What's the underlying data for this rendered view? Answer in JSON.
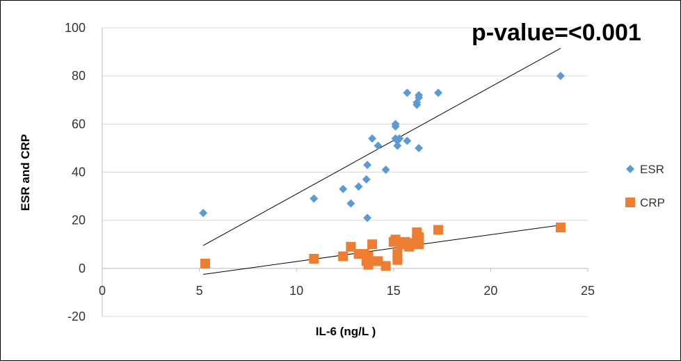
{
  "chart_data": {
    "type": "scatter",
    "title": "",
    "annotation": "p-value=<0.001",
    "xlabel": "IL-6 (ng/L )",
    "ylabel": "ESR and CRP",
    "xlim": [
      0,
      25
    ],
    "ylim": [
      -20,
      100
    ],
    "x_ticks": [
      "0",
      "5",
      "10",
      "15",
      "20",
      "25"
    ],
    "y_ticks": [
      "-20",
      "0",
      "20",
      "40",
      "60",
      "80",
      "100"
    ],
    "grid": "horizontal",
    "legend_position": "right",
    "series": [
      {
        "name": "ESR",
        "marker": "diamond",
        "color": "#5B9BD5",
        "points": [
          [
            5.2,
            23
          ],
          [
            10.9,
            29
          ],
          [
            12.4,
            33
          ],
          [
            12.8,
            27
          ],
          [
            13.2,
            34
          ],
          [
            13.6,
            37
          ],
          [
            13.65,
            43
          ],
          [
            13.65,
            21
          ],
          [
            13.9,
            54
          ],
          [
            14.2,
            51
          ],
          [
            14.6,
            41
          ],
          [
            15.1,
            59
          ],
          [
            15.1,
            60
          ],
          [
            15.1,
            54
          ],
          [
            15.2,
            51
          ],
          [
            15.2,
            53
          ],
          [
            15.3,
            54
          ],
          [
            15.7,
            53
          ],
          [
            15.7,
            73
          ],
          [
            16.2,
            68
          ],
          [
            16.2,
            69
          ],
          [
            16.3,
            72
          ],
          [
            16.3,
            71
          ],
          [
            16.3,
            50
          ],
          [
            17.3,
            73
          ],
          [
            23.6,
            80
          ]
        ],
        "trendline": [
          [
            5.2,
            9.5
          ],
          [
            23.6,
            91.5
          ]
        ]
      },
      {
        "name": "CRP",
        "marker": "square",
        "color": "#ED7D31",
        "points": [
          [
            5.3,
            2
          ],
          [
            10.9,
            4
          ],
          [
            12.4,
            5
          ],
          [
            12.8,
            9
          ],
          [
            13.2,
            6
          ],
          [
            13.5,
            6
          ],
          [
            13.6,
            3
          ],
          [
            13.7,
            5
          ],
          [
            13.7,
            1.5
          ],
          [
            13.9,
            10
          ],
          [
            14.0,
            3
          ],
          [
            14.2,
            3
          ],
          [
            14.6,
            1
          ],
          [
            15.0,
            11
          ],
          [
            15.1,
            12
          ],
          [
            15.2,
            6
          ],
          [
            15.2,
            3.5
          ],
          [
            15.4,
            10
          ],
          [
            15.6,
            11
          ],
          [
            15.8,
            9
          ],
          [
            15.9,
            10.5
          ],
          [
            16.2,
            15
          ],
          [
            16.2,
            12
          ],
          [
            16.3,
            10
          ],
          [
            16.3,
            13
          ],
          [
            17.3,
            16
          ],
          [
            23.6,
            17
          ]
        ],
        "trendline": [
          [
            5.2,
            -2.5
          ],
          [
            23.6,
            18
          ]
        ]
      }
    ]
  }
}
